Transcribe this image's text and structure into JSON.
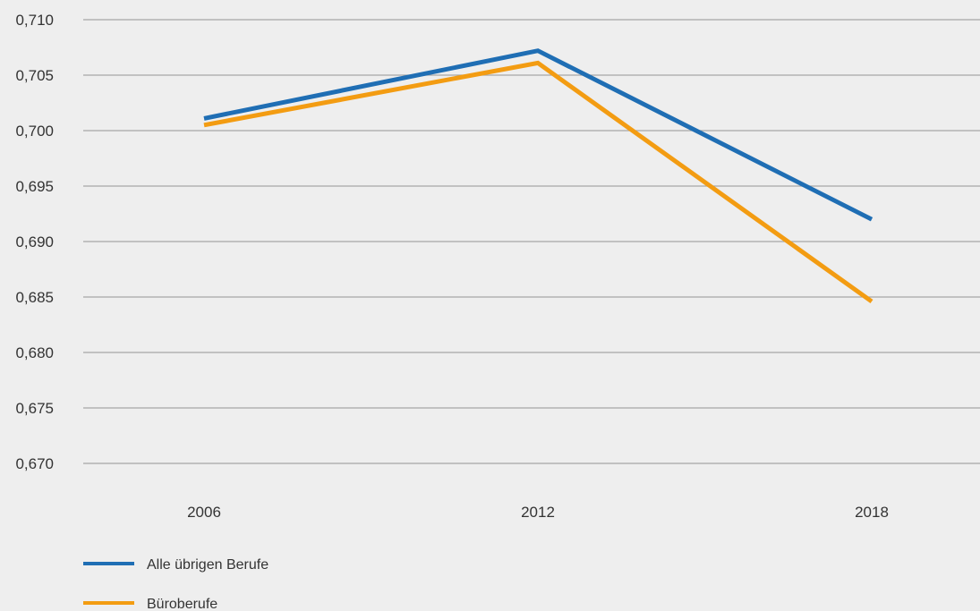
{
  "chart_data": {
    "type": "line",
    "categories": [
      "2006",
      "2012",
      "2018"
    ],
    "series": [
      {
        "name": "Alle übrigen Berufe",
        "values": [
          0.7011,
          0.7072,
          0.692
        ],
        "color": "#1f6eb4"
      },
      {
        "name": "Büroberufe",
        "values": [
          0.7005,
          0.7061,
          0.6846
        ],
        "color": "#f39c12"
      }
    ],
    "yticks": [
      "0,710",
      "0,705",
      "0,700",
      "0,695",
      "0,690",
      "0,685",
      "0,680",
      "0,675",
      "0,670"
    ],
    "ylim": [
      0.67,
      0.71
    ],
    "grid": true,
    "legend_position": "bottom-left"
  }
}
